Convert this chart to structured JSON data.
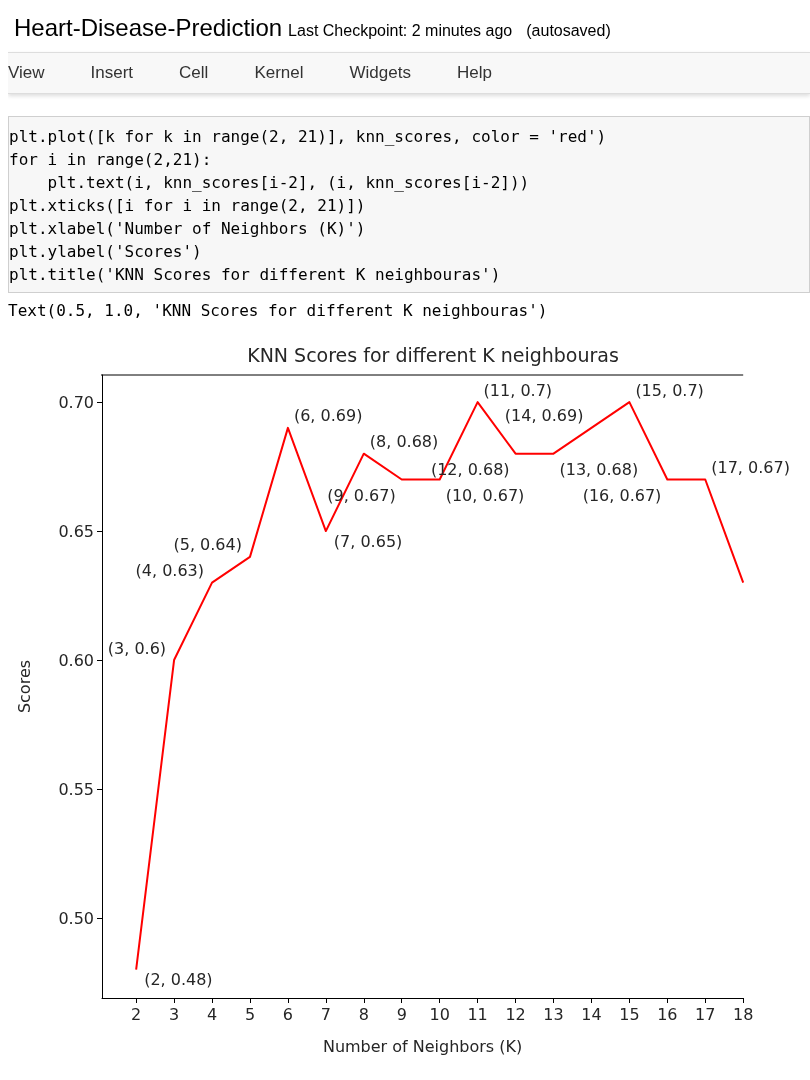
{
  "chart_data": {
    "type": "line",
    "title": "KNN Scores for different K neighbouras",
    "xlabel": "Number of Neighbors (K)",
    "ylabel": "Scores",
    "annotations": [
      "Heart-Disease-Prediction",
      "Last Checkpoint: 2 minutes ago",
      "(autosaved)",
      "View",
      "Insert",
      "Cell",
      "Kernel",
      "Widgets",
      "Help",
      "plt.plot([k for k in range(2, 21)], knn_scores, color = 'red')",
      "for i in range(2,21):",
      "    plt.text(i, knn_scores[i-2], (i, knn_scores[i-2]))",
      "plt.xticks([i for i in range(2, 21)])",
      "plt.xlabel('Number of Neighbors (K)')",
      "plt.ylabel('Scores')",
      "plt.title('KNN Scores for different K neighbouras')",
      "Text(0.5, 1.0, 'KNN Scores for different K neighbouras')"
    ],
    "x": [
      2,
      3,
      4,
      5,
      6,
      7,
      8,
      9,
      10,
      11,
      12,
      13,
      14,
      15,
      16,
      17,
      18
    ],
    "series": [
      {
        "color": "#ff0000",
        "values": [
          0.48,
          0.6,
          0.63,
          0.64,
          0.69,
          0.65,
          0.68,
          0.67,
          0.67,
          0.7,
          0.68,
          0.68,
          0.69,
          0.7,
          0.67,
          0.67,
          0.63
        ],
        "value_labels": [
          "(2, 0.48)",
          "(3, 0.6)",
          "(4, 0.63)",
          "(5, 0.64)",
          "(6, 0.69)",
          "(7, 0.65)",
          "(8, 0.68)",
          "(9, 0.67)",
          "(10, 0.67)",
          "(11, 0.7)",
          "(12, 0.68)",
          "(13, 0.68)",
          "(14, 0.69)",
          "(15, 0.7)",
          "(16, 0.67)",
          "(17, 0.67)",
          null
        ]
      }
    ],
    "xlim": [
      1.1,
      18
    ],
    "xticks": [
      2,
      3,
      4,
      5,
      6,
      7,
      8,
      9,
      10,
      11,
      12,
      13,
      14,
      15,
      16,
      17,
      18
    ],
    "ylim": [
      0.469,
      0.7105
    ],
    "yticks": [
      {
        "value": 0.5,
        "label": "0.50"
      },
      0.55,
      {
        "value": 0.6,
        "label": "0.60"
      },
      0.65,
      {
        "value": 0.7,
        "label": "0.70"
      }
    ],
    "grid": false,
    "marker": "none",
    "line_style": "solid"
  }
}
